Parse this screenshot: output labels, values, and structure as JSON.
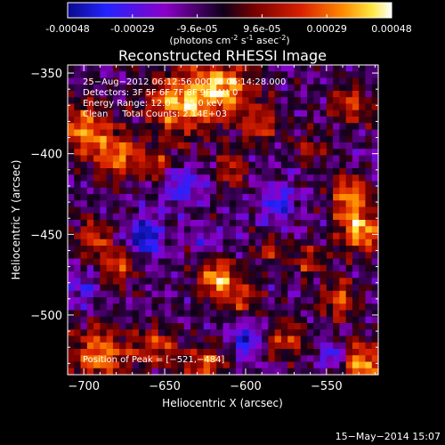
{
  "colorbar": {
    "ticks": [
      "-0.00048",
      "-0.00029",
      "-9.6e-05",
      "9.6e-05",
      "0.00029",
      "0.00048"
    ],
    "unit_prefix": "(photons cm",
    "unit_exp1": "-2",
    "unit_mid": " s",
    "unit_exp2": "-1",
    "unit_mid2": " asec",
    "unit_exp3": "-2",
    "unit_suffix": ")",
    "colors": [
      "#0a0a8a",
      "#2323ff",
      "#8a00c8",
      "#10001a",
      "#7a0000",
      "#d82000",
      "#ff8a00",
      "#ffe840",
      "#ffffff"
    ]
  },
  "chart_data": {
    "type": "heatmap",
    "title": "Reconstructed RHESSI Image",
    "xlabel": "Heliocentric X (arcsec)",
    "ylabel": "Heliocentric Y (arcsec)",
    "xlim": [
      -710,
      -518
    ],
    "ylim": [
      -537,
      -345
    ],
    "x_ticks": [
      -700,
      -650,
      -600,
      -550
    ],
    "y_ticks": [
      -350,
      -400,
      -450,
      -500
    ],
    "x_tick_labels": [
      "−700",
      "−650",
      "−600",
      "−550"
    ],
    "y_tick_labels": [
      "−350",
      "−400",
      "−450",
      "−500"
    ],
    "value_range": [
      -0.00048,
      0.00048
    ],
    "grid_size": [
      48,
      48
    ],
    "peak": [
      -521,
      -484
    ],
    "blobs": [
      {
        "x": -700,
        "y": -385,
        "v": 0.0004,
        "r": 14
      },
      {
        "x": -678,
        "y": -402,
        "v": 0.00038,
        "r": 12
      },
      {
        "x": -640,
        "y": -368,
        "v": 0.00045,
        "r": 18
      },
      {
        "x": -612,
        "y": -360,
        "v": 0.00042,
        "r": 15
      },
      {
        "x": -590,
        "y": -382,
        "v": 0.0003,
        "r": 10
      },
      {
        "x": -535,
        "y": -370,
        "v": 0.0003,
        "r": 11
      },
      {
        "x": -655,
        "y": -408,
        "v": 0.00025,
        "r": 9
      },
      {
        "x": -608,
        "y": -410,
        "v": 0.00028,
        "r": 9
      },
      {
        "x": -560,
        "y": -398,
        "v": 0.0002,
        "r": 9
      },
      {
        "x": -535,
        "y": -425,
        "v": 0.0004,
        "r": 10
      },
      {
        "x": -530,
        "y": -447,
        "v": 0.00046,
        "r": 12
      },
      {
        "x": -695,
        "y": -452,
        "v": 0.00032,
        "r": 10
      },
      {
        "x": -678,
        "y": -470,
        "v": 0.0003,
        "r": 10
      },
      {
        "x": -617,
        "y": -478,
        "v": 0.00046,
        "r": 11
      },
      {
        "x": -600,
        "y": -490,
        "v": 0.00025,
        "r": 9
      },
      {
        "x": -585,
        "y": -460,
        "v": 0.00025,
        "r": 8
      },
      {
        "x": -562,
        "y": -467,
        "v": 0.00027,
        "r": 9
      },
      {
        "x": -542,
        "y": -490,
        "v": 0.00035,
        "r": 10
      },
      {
        "x": -690,
        "y": -525,
        "v": 0.0004,
        "r": 16
      },
      {
        "x": -655,
        "y": -520,
        "v": 0.0003,
        "r": 11
      },
      {
        "x": -625,
        "y": -530,
        "v": 0.00032,
        "r": 11
      },
      {
        "x": -575,
        "y": -515,
        "v": 0.0003,
        "r": 10
      },
      {
        "x": -528,
        "y": -530,
        "v": 0.00042,
        "r": 12
      },
      {
        "x": -662,
        "y": -452,
        "v": -0.0004,
        "r": 9
      },
      {
        "x": -640,
        "y": -420,
        "v": -0.00025,
        "r": 10
      },
      {
        "x": -580,
        "y": -430,
        "v": -0.00022,
        "r": 10
      },
      {
        "x": -600,
        "y": -515,
        "v": -0.0003,
        "r": 8
      },
      {
        "x": -545,
        "y": -525,
        "v": -0.0003,
        "r": 7
      },
      {
        "x": -700,
        "y": -485,
        "v": -0.00018,
        "r": 8
      },
      {
        "x": -625,
        "y": -455,
        "v": -0.00015,
        "r": 7
      }
    ]
  },
  "annotations": {
    "time_range": "25−Aug−2012 06:12:56.000 to 06:14:28.000",
    "detectors": "Detectors: 3F 5F 6F 7F 8F 9F, Att 0",
    "energy": "Energy Range: 12.0 − 25.0 keV",
    "clean": "Clean     Total Counts: 2.14E+03",
    "peak": "Position of Peak = [−521,−484]"
  },
  "footer": {
    "date": "15−May−2014 15:07"
  }
}
